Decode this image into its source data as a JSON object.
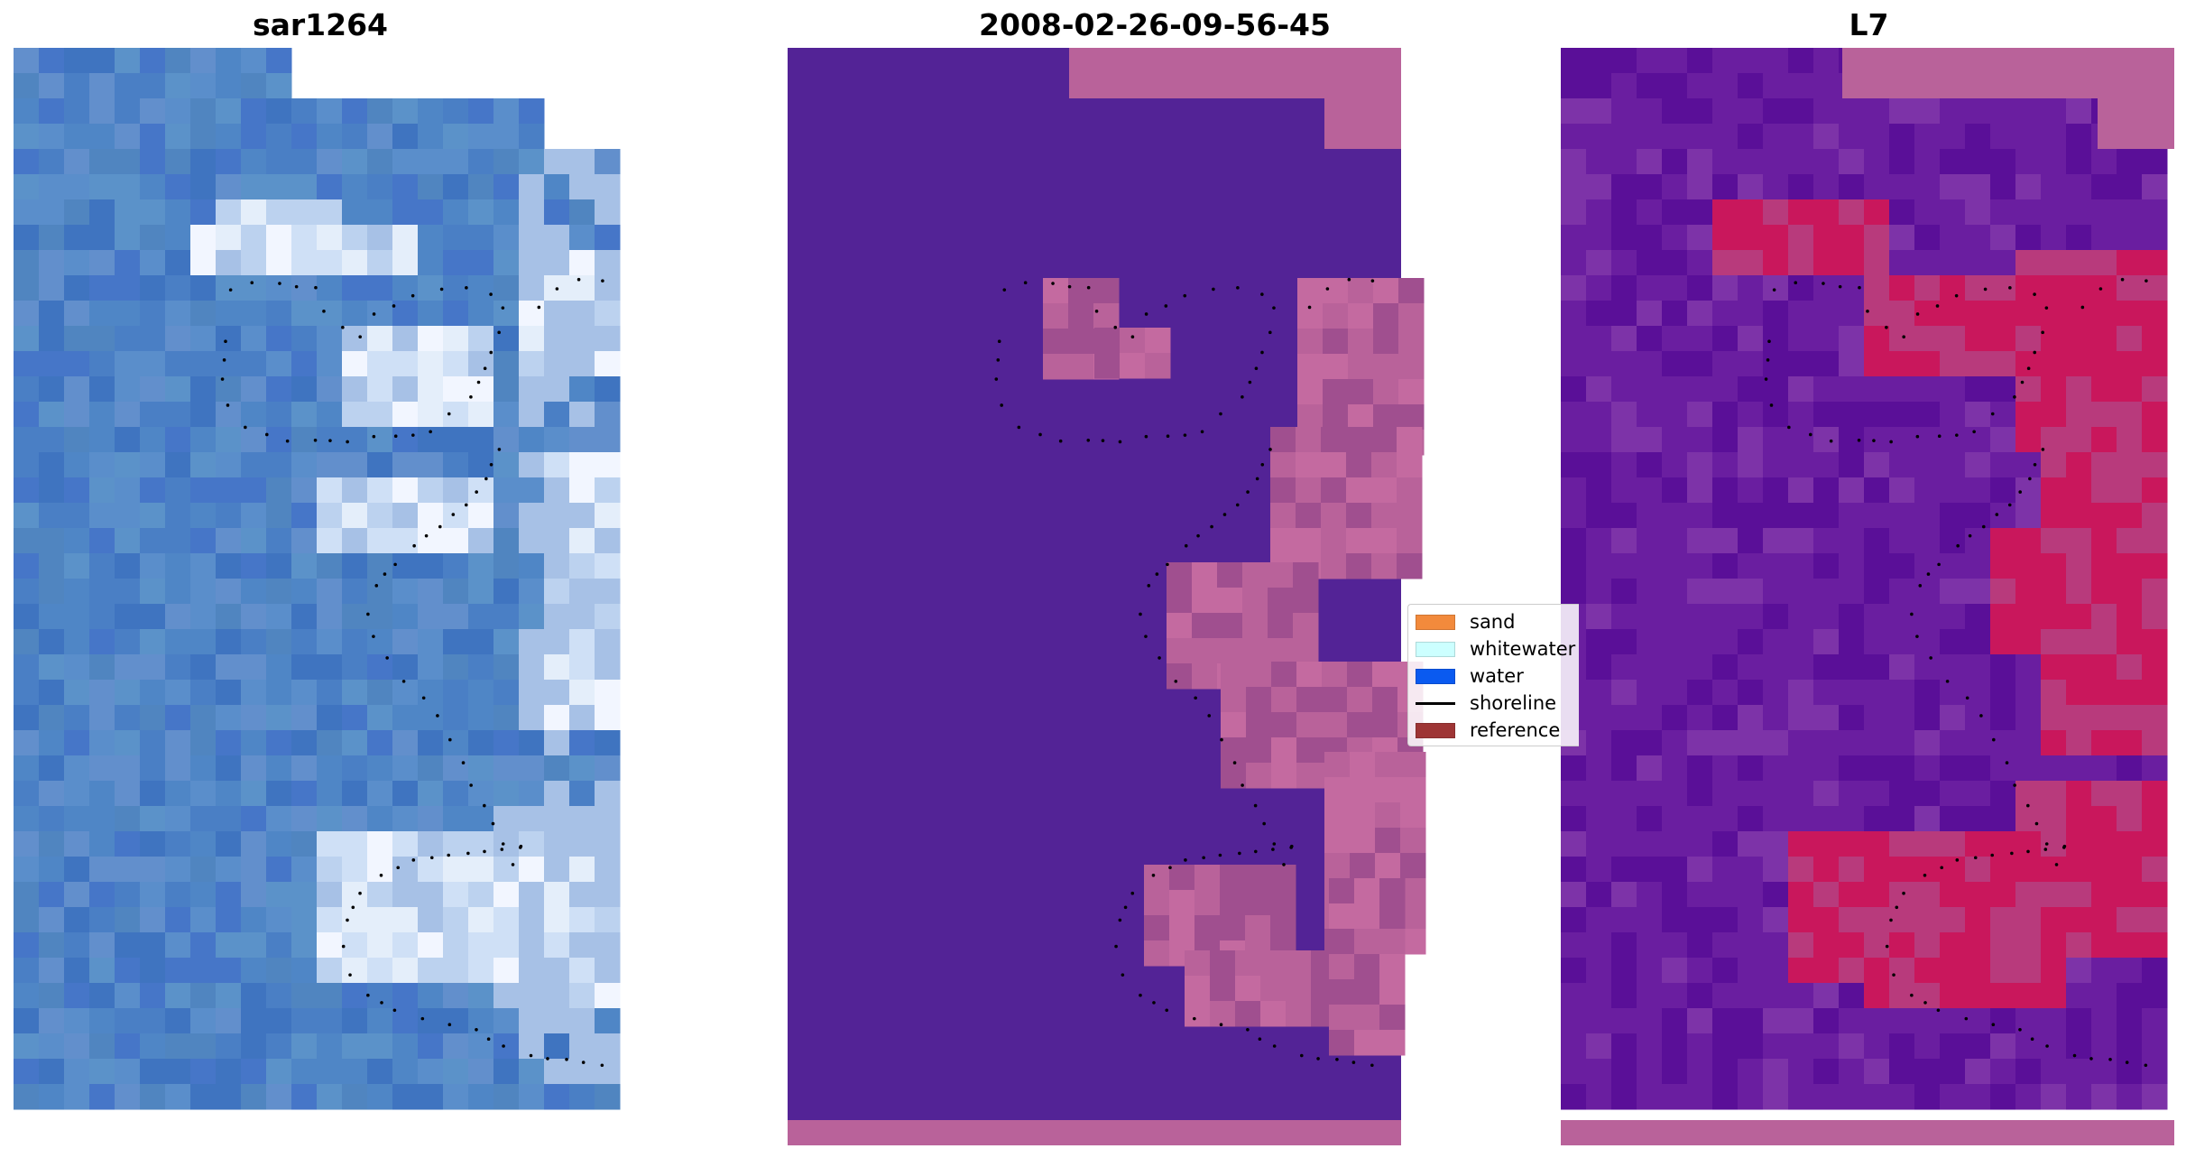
{
  "panels": [
    {
      "title": "sar1264",
      "palette": [
        "#4f86c6",
        "#4a7fc5",
        "#5a8ecb",
        "#4676c8",
        "#5b92c9",
        "#628fcc",
        "#3f74c0",
        "#5085c0"
      ],
      "highlight_colors": [
        "#cfe0f6",
        "#e4eefa",
        "#bcd2ef",
        "#f2f6ff",
        "#a7c1e6"
      ]
    },
    {
      "title": "2008-02-26-09-56-45",
      "colors": {
        "water": "#532396",
        "sand": "#b9629a",
        "sand_dark": "#a04f8f",
        "sand_light": "#c46aa0"
      }
    },
    {
      "title": "L7",
      "colors": {
        "water": "#6a1ea0",
        "water_dark": "#5a0f98",
        "water_light": "#7d33a8",
        "sand": "#c9175c",
        "sand_light": "#b83a7c",
        "nodata": "#b9629a"
      }
    }
  ],
  "legend": {
    "items": [
      {
        "label": "sand",
        "kind": "patch",
        "color": "#f28a3c"
      },
      {
        "label": "whitewater",
        "kind": "patch",
        "color": "#ccffff"
      },
      {
        "label": "water",
        "kind": "patch",
        "color": "#0a5af0"
      },
      {
        "label": "shoreline",
        "kind": "line",
        "color": "#000000"
      },
      {
        "label": "reference",
        "kind": "patch",
        "color": "#9e3535"
      }
    ]
  }
}
